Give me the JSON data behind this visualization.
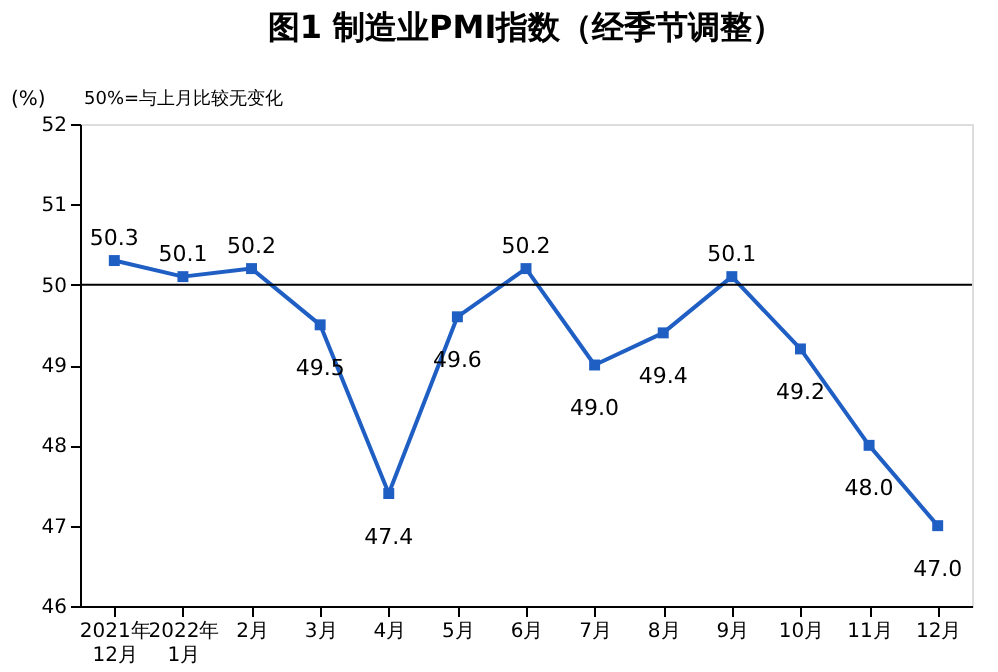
{
  "chart_data": {
    "type": "line",
    "title": "图1 制造业PMI指数（经季节调整）",
    "ylabel": "(%)",
    "annotations": [
      "50%=与上月比较无变化"
    ],
    "categories": [
      "2021年\n12月",
      "2022年\n1月",
      "2月",
      "3月",
      "4月",
      "5月",
      "6月",
      "7月",
      "8月",
      "9月",
      "10月",
      "11月",
      "12月"
    ],
    "series": [
      {
        "color": "#1f5fc4",
        "values": [
          50.3,
          50.1,
          50.2,
          49.5,
          47.4,
          49.6,
          50.2,
          49.0,
          49.4,
          50.1,
          49.2,
          48.0,
          47.0
        ],
        "value_labels": [
          "50.3",
          "50.1",
          "50.2",
          "49.5",
          "47.4",
          "49.6",
          "50.2",
          "49.0",
          "49.4",
          "50.1",
          "49.2",
          "48.0",
          "47.0"
        ]
      }
    ],
    "ylim": [
      46,
      52
    ],
    "yticks": [
      46,
      47,
      48,
      49,
      50,
      51,
      52
    ],
    "ref_lines": [
      {
        "axis": "y",
        "value": 50,
        "color": "#000000"
      }
    ],
    "marker": "square",
    "line_style": "solid",
    "grid": false
  }
}
